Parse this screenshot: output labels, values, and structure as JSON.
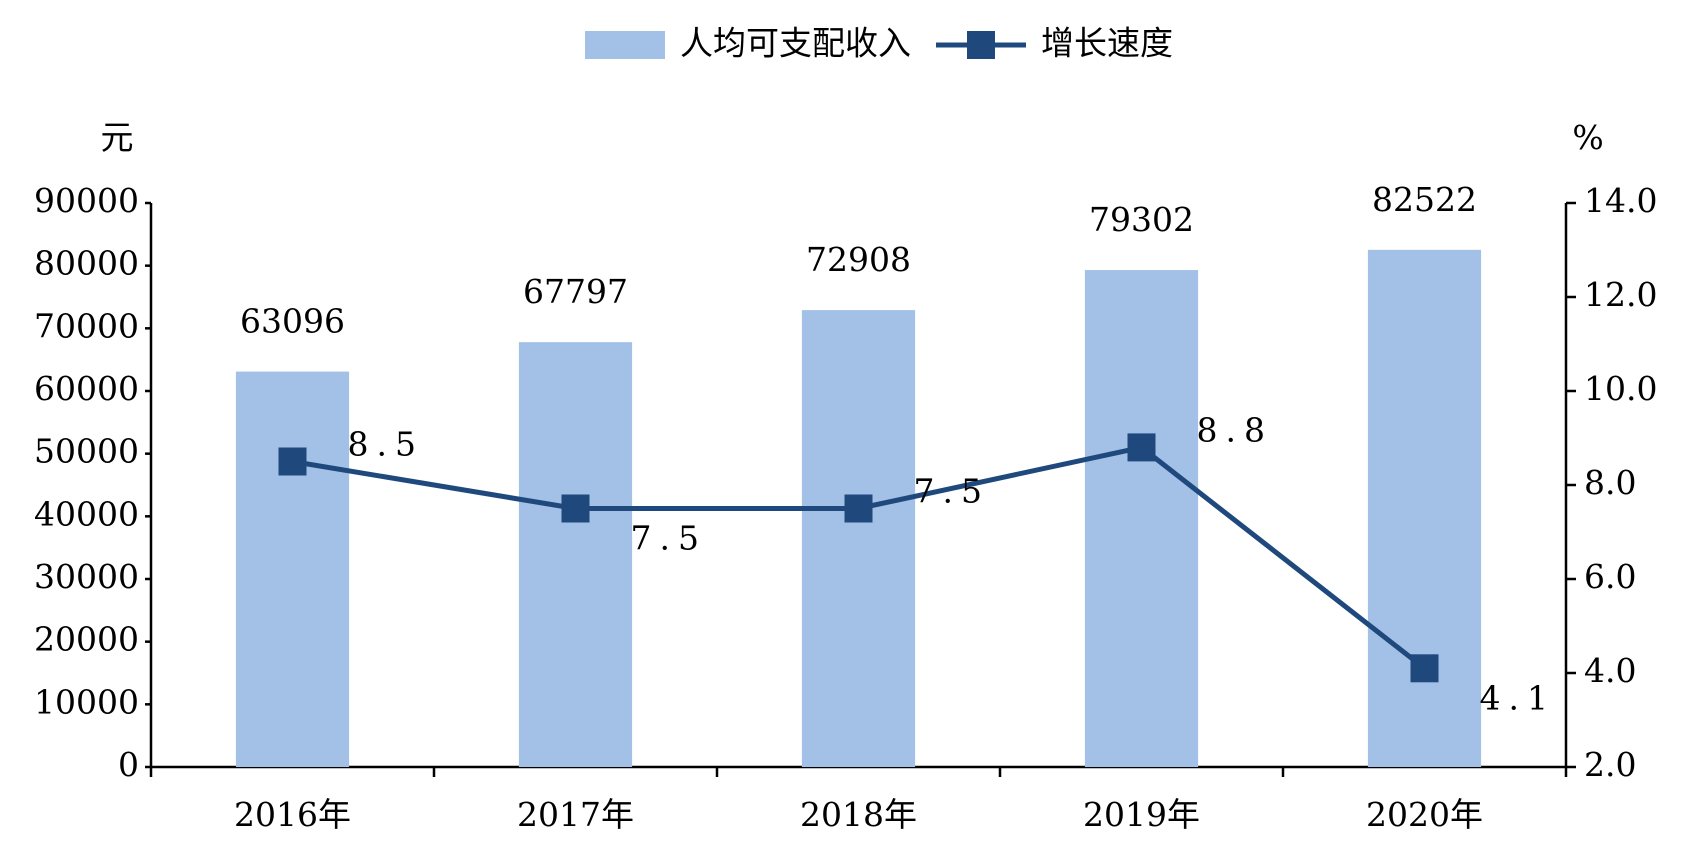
{
  "chart_data": {
    "type": "bar-line",
    "y_label": "元",
    "y2_label": "%",
    "categories": [
      "2016年",
      "2017年",
      "2018年",
      "2019年",
      "2020年"
    ],
    "series": [
      {
        "name": "人均可支配收入",
        "type": "bar",
        "color": "#a3c1e6",
        "values": [
          63096,
          67797,
          72908,
          79302,
          82522
        ]
      },
      {
        "name": "增长速度",
        "type": "line",
        "axis": "y2",
        "color": "#1f497d",
        "values": [
          8.5,
          7.5,
          7.5,
          8.8,
          4.1
        ]
      }
    ],
    "ylim": [
      0,
      90000
    ],
    "yticks": [
      0,
      10000,
      20000,
      30000,
      40000,
      50000,
      60000,
      70000,
      80000,
      90000
    ],
    "y2lim": [
      2,
      14
    ],
    "y2ticks": [
      {
        "value": 2,
        "label": "2.0"
      },
      {
        "value": 4,
        "label": "4.0"
      },
      {
        "value": 6,
        "label": "6.0"
      },
      {
        "value": 8,
        "label": "8.0"
      },
      {
        "value": 10,
        "label": "10.0"
      },
      {
        "value": 12,
        "label": "12.0"
      },
      {
        "value": 14,
        "label": "14.0"
      }
    ],
    "legend": "top"
  }
}
